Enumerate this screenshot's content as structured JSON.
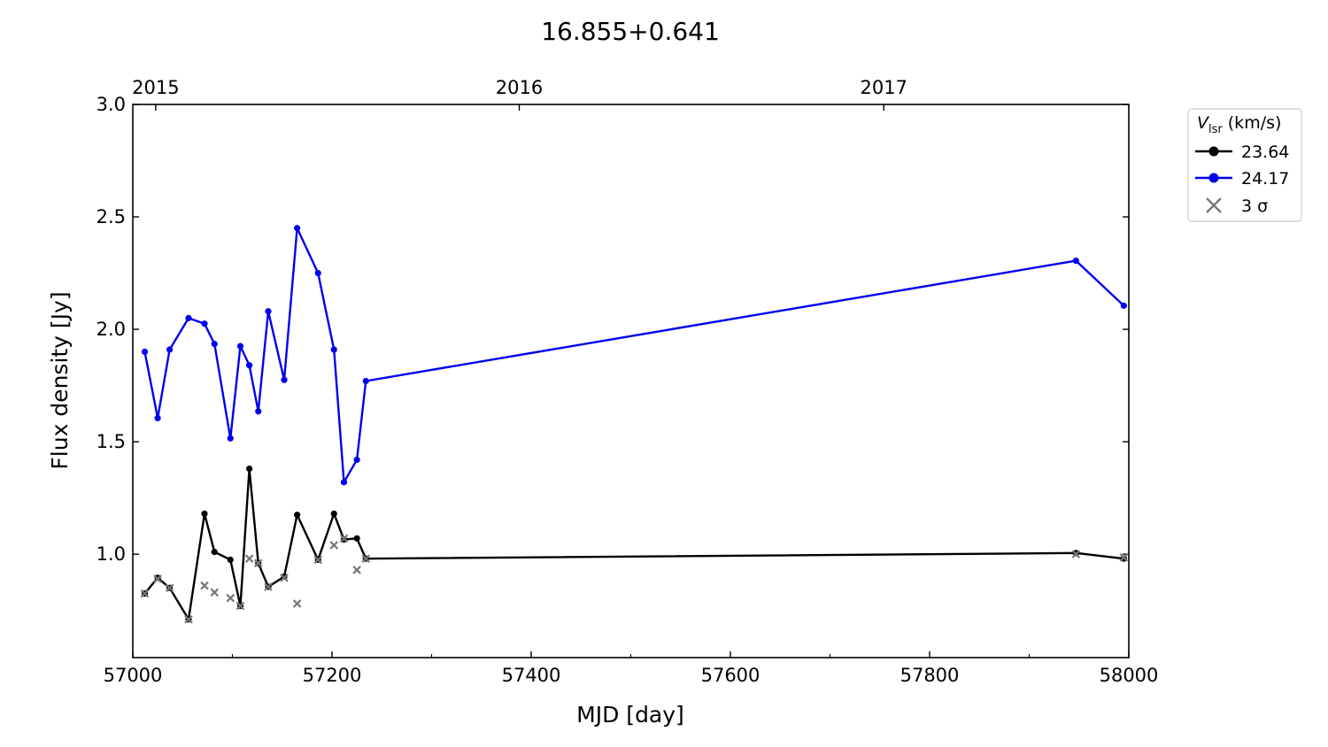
{
  "chart_data": {
    "type": "line",
    "title": "16.855+0.641",
    "xlabel": "MJD [day]",
    "ylabel": "Flux density [Jy]",
    "xlim": [
      57000,
      58000
    ],
    "ylim": [
      0.54,
      3.0
    ],
    "x_ticks": [
      57000,
      57200,
      57400,
      57600,
      57800,
      58000
    ],
    "y_ticks": [
      1.0,
      1.5,
      2.0,
      2.5,
      3.0
    ],
    "top_axis": {
      "labels": [
        "2015",
        "2016",
        "2017"
      ],
      "label_mjd": [
        57023,
        57388,
        57754
      ]
    },
    "grid": false,
    "legend": {
      "placement": "outside-right-top",
      "title_main": "V",
      "title_sub": "lsr",
      "title_unit": " (km/s)",
      "entries": [
        {
          "label": "23.64",
          "color": "#000000",
          "marker": "dot-line"
        },
        {
          "label": "24.17",
          "color": "#0000ee",
          "marker": "dot-line"
        },
        {
          "label": "3 σ",
          "color": "#777777",
          "marker": "x"
        }
      ]
    },
    "series": [
      {
        "name": "23.64",
        "color": "#000000",
        "x": [
          57012,
          57025,
          57037,
          57056,
          57072,
          57082,
          57098,
          57108,
          57117,
          57126,
          57136,
          57152,
          57165,
          57186,
          57202,
          57212,
          57225,
          57234,
          57947,
          57995
        ],
        "y": [
          0.825,
          0.895,
          0.85,
          0.71,
          1.18,
          1.01,
          0.975,
          0.77,
          1.38,
          0.96,
          0.855,
          0.9,
          1.175,
          0.975,
          1.18,
          1.065,
          1.07,
          0.98,
          1.005,
          0.98
        ]
      },
      {
        "name": "24.17",
        "color": "#0000ee",
        "x": [
          57012,
          57025,
          57037,
          57056,
          57072,
          57082,
          57098,
          57108,
          57117,
          57126,
          57136,
          57152,
          57165,
          57186,
          57202,
          57212,
          57225,
          57234,
          57947,
          57995
        ],
        "y": [
          1.9,
          1.605,
          1.91,
          2.05,
          2.025,
          1.935,
          1.515,
          1.925,
          1.84,
          1.635,
          2.08,
          1.775,
          2.45,
          2.25,
          1.91,
          1.32,
          1.42,
          1.77,
          2.305,
          2.105
        ]
      },
      {
        "name": "3 σ",
        "color": "#777777",
        "marker": "x",
        "x": [
          57012,
          57025,
          57037,
          57056,
          57072,
          57082,
          57098,
          57108,
          57117,
          57126,
          57136,
          57152,
          57165,
          57186,
          57202,
          57212,
          57225,
          57234,
          57947,
          57995
        ],
        "y": [
          0.825,
          0.89,
          0.85,
          0.71,
          0.86,
          0.83,
          0.805,
          0.77,
          0.98,
          0.96,
          0.855,
          0.895,
          0.78,
          0.975,
          1.04,
          1.07,
          0.93,
          0.98,
          1.0,
          0.985
        ]
      }
    ]
  }
}
